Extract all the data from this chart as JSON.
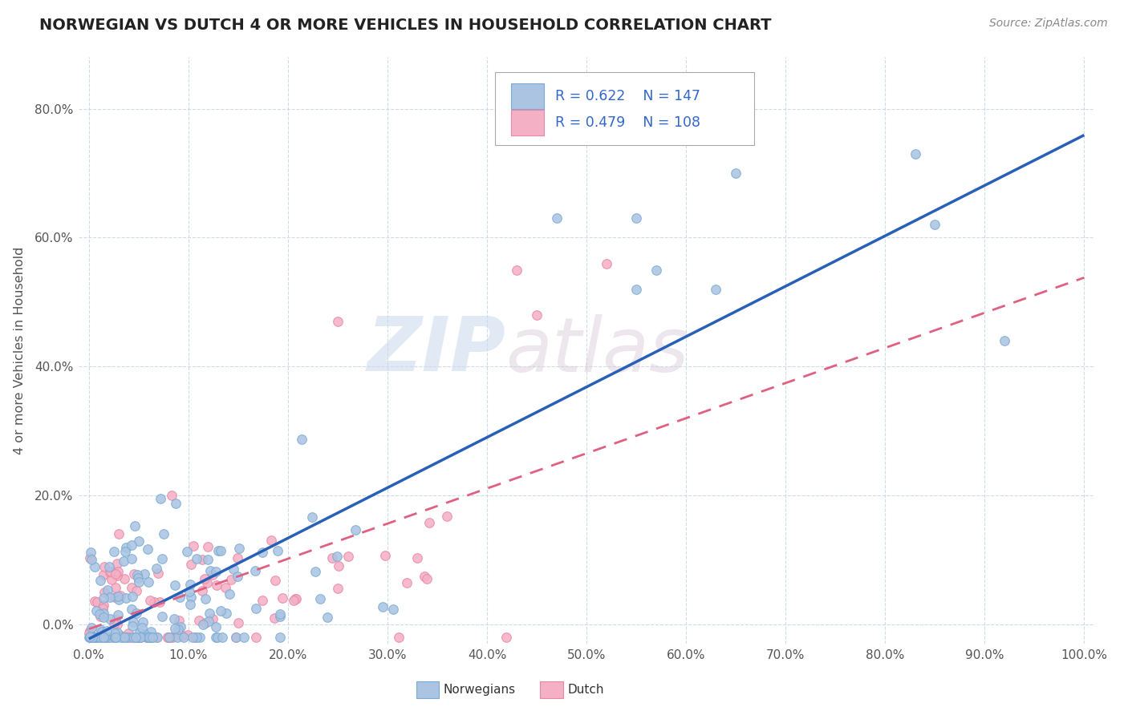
{
  "title": "NORWEGIAN VS DUTCH 4 OR MORE VEHICLES IN HOUSEHOLD CORRELATION CHART",
  "source": "Source: ZipAtlas.com",
  "ylabel": "4 or more Vehicles in Household",
  "xlim": [
    -0.01,
    1.01
  ],
  "ylim": [
    -0.03,
    0.88
  ],
  "xticks": [
    0.0,
    0.1,
    0.2,
    0.3,
    0.4,
    0.5,
    0.6,
    0.7,
    0.8,
    0.9,
    1.0
  ],
  "xtick_labels": [
    "0.0%",
    "10.0%",
    "20.0%",
    "30.0%",
    "40.0%",
    "50.0%",
    "60.0%",
    "70.0%",
    "80.0%",
    "90.0%",
    "100.0%"
  ],
  "yticks": [
    0.0,
    0.2,
    0.4,
    0.6,
    0.8
  ],
  "ytick_labels": [
    "0.0%",
    "20.0%",
    "40.0%",
    "60.0%",
    "80.0%"
  ],
  "norwegian_color": "#aac4e2",
  "dutch_color": "#f4b0c4",
  "norwegian_edge": "#7aabd4",
  "dutch_edge": "#e888a8",
  "trend_norwegian_color": "#2860b8",
  "trend_dutch_color": "#e06080",
  "legend_norwegian_label": "Norwegians",
  "legend_dutch_label": "Dutch",
  "R_norwegian": 0.622,
  "N_norwegian": 147,
  "R_dutch": 0.479,
  "N_dutch": 108,
  "watermark_zip": "ZIP",
  "watermark_atlas": "atlas",
  "background_color": "#ffffff",
  "grid_color": "#c8d8e8",
  "nor_trend_start": -0.02,
  "nor_trend_end": 0.4,
  "dut_trend_start": 0.01,
  "dut_trend_end": 0.3
}
